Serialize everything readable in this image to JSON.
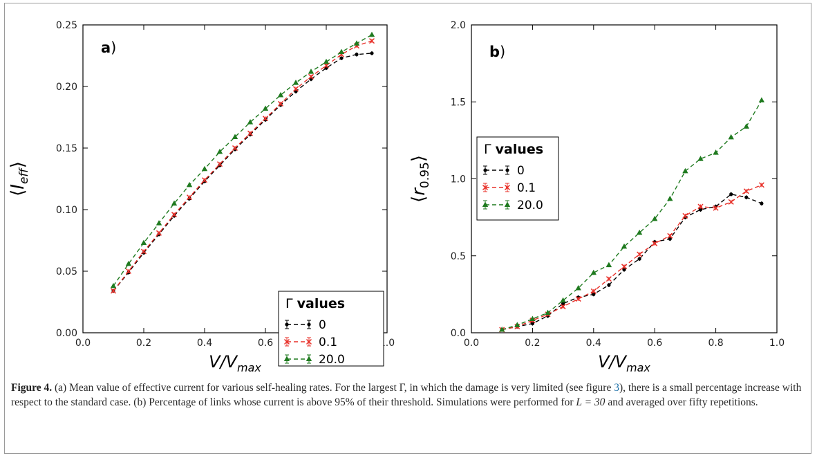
{
  "colors": {
    "gamma_0": "#000000",
    "gamma_0_1": "#e8312a",
    "gamma_20": "#1f7a1f",
    "axes": "#000000",
    "caption_link": "#1a6fa8",
    "frame": "#9a9a9a"
  },
  "chart_data": [
    {
      "type": "line",
      "panel_label": "a)",
      "xlabel": "V/V_max",
      "ylabel": "⟨I_eff⟩",
      "xlim": [
        0.0,
        1.0
      ],
      "ylim": [
        0.0,
        0.25
      ],
      "xticks": [
        "0.0",
        "0.2",
        "0.4",
        "0.6",
        "0.8",
        "1.0"
      ],
      "yticks": [
        "0.00",
        "0.05",
        "0.10",
        "0.15",
        "0.20",
        "0.25"
      ],
      "grid": false,
      "legend_title": "Γ values",
      "legend_position": "lower-right",
      "x": [
        0.1,
        0.15,
        0.2,
        0.25,
        0.3,
        0.35,
        0.4,
        0.45,
        0.5,
        0.55,
        0.6,
        0.65,
        0.7,
        0.75,
        0.8,
        0.85,
        0.9,
        0.95
      ],
      "series": [
        {
          "name": "0",
          "marker": "dot",
          "values": [
            0.034,
            0.049,
            0.065,
            0.08,
            0.095,
            0.109,
            0.123,
            0.136,
            0.149,
            0.161,
            0.173,
            0.185,
            0.196,
            0.206,
            0.215,
            0.223,
            0.226,
            0.227
          ]
        },
        {
          "name": "0.1",
          "marker": "x",
          "values": [
            0.034,
            0.05,
            0.066,
            0.081,
            0.096,
            0.11,
            0.124,
            0.137,
            0.15,
            0.162,
            0.174,
            0.186,
            0.198,
            0.208,
            0.217,
            0.226,
            0.233,
            0.237
          ]
        },
        {
          "name": "20.0",
          "marker": "triangle",
          "values": [
            0.038,
            0.056,
            0.073,
            0.089,
            0.105,
            0.12,
            0.133,
            0.147,
            0.159,
            0.171,
            0.182,
            0.193,
            0.203,
            0.212,
            0.22,
            0.228,
            0.235,
            0.242
          ]
        }
      ]
    },
    {
      "type": "line",
      "panel_label": "b)",
      "xlabel": "V/V_max",
      "ylabel": "⟨r_0.95⟩",
      "xlim": [
        0.0,
        1.0
      ],
      "ylim": [
        0.0,
        2.0
      ],
      "xticks": [
        "0.0",
        "0.2",
        "0.4",
        "0.6",
        "0.8",
        "1.0"
      ],
      "yticks": [
        "0.0",
        "0.5",
        "1.0",
        "1.5",
        "2.0"
      ],
      "grid": false,
      "legend_title": "Γ values",
      "legend_position": "center-left",
      "x": [
        0.1,
        0.15,
        0.2,
        0.25,
        0.3,
        0.35,
        0.4,
        0.45,
        0.5,
        0.55,
        0.6,
        0.65,
        0.7,
        0.75,
        0.8,
        0.85,
        0.9,
        0.95
      ],
      "series": [
        {
          "name": "0",
          "marker": "dot",
          "values": [
            0.02,
            0.04,
            0.06,
            0.11,
            0.19,
            0.23,
            0.25,
            0.31,
            0.41,
            0.48,
            0.59,
            0.61,
            0.75,
            0.8,
            0.82,
            0.9,
            0.88,
            0.84
          ]
        },
        {
          "name": "0.1",
          "marker": "x",
          "values": [
            0.02,
            0.04,
            0.08,
            0.12,
            0.17,
            0.22,
            0.27,
            0.35,
            0.43,
            0.51,
            0.58,
            0.63,
            0.76,
            0.82,
            0.81,
            0.85,
            0.92,
            0.96
          ]
        },
        {
          "name": "20.0",
          "marker": "triangle",
          "values": [
            0.02,
            0.05,
            0.09,
            0.13,
            0.21,
            0.29,
            0.39,
            0.44,
            0.56,
            0.65,
            0.74,
            0.87,
            1.05,
            1.13,
            1.17,
            1.27,
            1.34,
            1.51
          ]
        }
      ]
    }
  ],
  "caption": {
    "label": "Figure 4.",
    "text_1": " (a) Mean value of effective current for various self-healing rates. For the largest Γ, in which the damage is very limited (see figure ",
    "ref": "3",
    "text_2": "), there is a small percentage increase with respect to the standard case. (b) Percentage of links whose current is above 95% of their threshold. Simulations were performed for ",
    "math": "L = 30",
    "text_3": " and averaged over fifty repetitions."
  }
}
